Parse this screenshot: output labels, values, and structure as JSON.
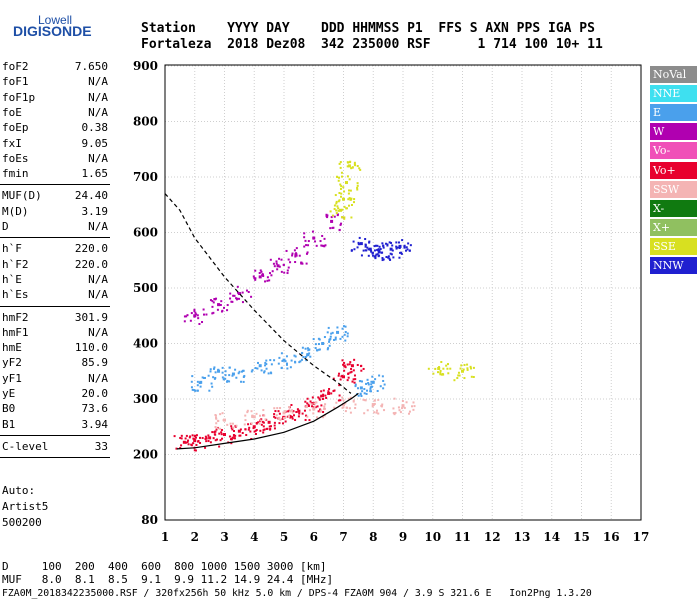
{
  "logo": {
    "top": "Lowell",
    "main": "DIGISONDE"
  },
  "header": {
    "line1": "Station    YYYY DAY    DDD HHMMSS P1  FFS S AXN PPS IGA PS",
    "line2": "Fortaleza  2018 Dez08  342 235000 RSF      1 714 100 10+ 11"
  },
  "params": [
    {
      "k": "foF2",
      "v": "7.650"
    },
    {
      "k": "foF1",
      "v": "N/A"
    },
    {
      "k": "foF1p",
      "v": "N/A"
    },
    {
      "k": "foE",
      "v": "N/A"
    },
    {
      "k": "foEp",
      "v": "0.38"
    },
    {
      "k": "fxI",
      "v": "9.05"
    },
    {
      "k": "foEs",
      "v": "N/A"
    },
    {
      "k": "fmin",
      "v": "1.65"
    },
    {
      "k": "MUF(D)",
      "v": "24.40"
    },
    {
      "k": "M(D)",
      "v": "3.19"
    },
    {
      "k": "D",
      "v": "N/A"
    },
    {
      "k": "h`F",
      "v": "220.0"
    },
    {
      "k": "h`F2",
      "v": "220.0"
    },
    {
      "k": "h`E",
      "v": "N/A"
    },
    {
      "k": "h`Es",
      "v": "N/A"
    },
    {
      "k": "hmF2",
      "v": "301.9"
    },
    {
      "k": "hmF1",
      "v": "N/A"
    },
    {
      "k": "hmE",
      "v": "110.0"
    },
    {
      "k": "yF2",
      "v": "85.9"
    },
    {
      "k": "yF1",
      "v": "N/A"
    },
    {
      "k": "yE",
      "v": "20.0"
    },
    {
      "k": "B0",
      "v": "73.6"
    },
    {
      "k": "B1",
      "v": "3.94"
    },
    {
      "k": "C-level",
      "v": "33"
    }
  ],
  "auto": {
    "line1": "Auto:",
    "line2": "Artist5",
    "line3": "500200"
  },
  "legend": [
    {
      "label": "NoVal",
      "color": "#8c8c8c"
    },
    {
      "label": "NNE",
      "color": "#3ee0f0"
    },
    {
      "label": "E",
      "color": "#4aa0ec"
    },
    {
      "label": "W",
      "color": "#b000b0"
    },
    {
      "label": "Vo-",
      "color": "#f050b8"
    },
    {
      "label": "Vo+",
      "color": "#e8002e"
    },
    {
      "label": "SSW",
      "color": "#f4b4b4"
    },
    {
      "label": "X-",
      "color": "#107a10"
    },
    {
      "label": "X+",
      "color": "#90c060"
    },
    {
      "label": "SSE",
      "color": "#d8e020"
    },
    {
      "label": "NNW",
      "color": "#2020d0"
    }
  ],
  "footer": {
    "line1": "D     100  200  400  600  800 1000 1500 3000 [km]",
    "line2": "MUF   8.0  8.1  8.5  9.1  9.9 11.2 14.9 24.4 [MHz]",
    "line3": "FZA0M_2018342235000.RSF / 320fx256h 50 kHz 5.0 km / DPS-4 FZA0M 904 / 3.9 S 321.6 E   Ion2Png 1.3.20"
  },
  "chart_data": {
    "type": "scatter",
    "xlim": [
      1,
      17
    ],
    "ylim": [
      80,
      900
    ],
    "x_ticks": [
      "1",
      "2",
      "3",
      "4",
      "5",
      "6",
      "7",
      "8",
      "9",
      "10",
      "11",
      "12",
      "13",
      "14",
      "15",
      "16",
      "17"
    ],
    "y_ticks": [
      "80",
      "200",
      "300",
      "400",
      "500",
      "600",
      "700",
      "800",
      "900"
    ],
    "grid": true,
    "series": [
      {
        "name": "Vo+",
        "color": "#e8002e",
        "points": [
          [
            1.65,
            222
          ],
          [
            2.0,
            225
          ],
          [
            2.5,
            230
          ],
          [
            3.0,
            236
          ],
          [
            3.5,
            242
          ],
          [
            4.0,
            250
          ],
          [
            4.5,
            258
          ],
          [
            5.0,
            267
          ],
          [
            5.5,
            278
          ],
          [
            6.0,
            292
          ],
          [
            6.5,
            310
          ],
          [
            7.0,
            340
          ],
          [
            7.3,
            360
          ]
        ]
      },
      {
        "name": "E",
        "color": "#4aa0ec",
        "points": [
          [
            2.2,
            330
          ],
          [
            2.8,
            350
          ],
          [
            3.3,
            345
          ],
          [
            4.2,
            360
          ],
          [
            5.0,
            370
          ],
          [
            5.8,
            380
          ],
          [
            6.3,
            400
          ],
          [
            6.8,
            420
          ],
          [
            7.6,
            320
          ],
          [
            8.0,
            330
          ]
        ]
      },
      {
        "name": "W",
        "color": "#b000b0",
        "points": [
          [
            2.0,
            450
          ],
          [
            2.8,
            470
          ],
          [
            3.5,
            490
          ],
          [
            4.2,
            520
          ],
          [
            4.8,
            540
          ],
          [
            5.4,
            560
          ],
          [
            6.0,
            590
          ],
          [
            6.6,
            620
          ]
        ]
      },
      {
        "name": "NNW",
        "color": "#2020d0",
        "points": [
          [
            7.6,
            580
          ],
          [
            7.9,
            570
          ],
          [
            8.2,
            565
          ],
          [
            8.6,
            570
          ],
          [
            8.9,
            575
          ]
        ]
      },
      {
        "name": "SSW",
        "color": "#f4b4b4",
        "points": [
          [
            3.0,
            262
          ],
          [
            4.0,
            268
          ],
          [
            5.0,
            275
          ],
          [
            6.0,
            282
          ],
          [
            7.0,
            290
          ],
          [
            8.0,
            290
          ],
          [
            9.0,
            288
          ]
        ]
      },
      {
        "name": "SSE",
        "color": "#d8e020",
        "points": [
          [
            6.9,
            640
          ],
          [
            7.0,
            660
          ],
          [
            7.1,
            690
          ],
          [
            7.2,
            720
          ],
          [
            10.2,
            355
          ],
          [
            11.0,
            350
          ]
        ]
      }
    ],
    "profile_line": [
      [
        1.4,
        210
      ],
      [
        2,
        212
      ],
      [
        3,
        220
      ],
      [
        4,
        228
      ],
      [
        5,
        240
      ],
      [
        6,
        260
      ],
      [
        6.8,
        285
      ],
      [
        7.3,
        302
      ],
      [
        7.5,
        310
      ]
    ],
    "muf_curve": [
      [
        1.0,
        670
      ],
      [
        1.5,
        640
      ],
      [
        2,
        590
      ],
      [
        3,
        520
      ],
      [
        4,
        460
      ],
      [
        5,
        405
      ],
      [
        6,
        360
      ],
      [
        6.8,
        330
      ],
      [
        7.25,
        310
      ]
    ]
  }
}
